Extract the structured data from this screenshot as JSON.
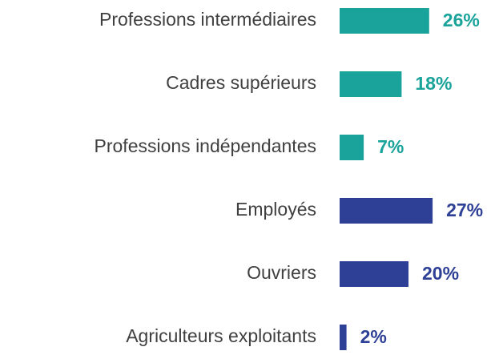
{
  "chart_data": {
    "type": "bar",
    "orientation": "horizontal",
    "categories": [
      "Professions intermédiaires",
      "Cadres supérieurs",
      "Professions indépendantes",
      "Employés",
      "Ouvriers",
      "Agriculteurs exploitants"
    ],
    "values": [
      26,
      18,
      7,
      27,
      20,
      2
    ],
    "value_labels": [
      "26%",
      "18%",
      "7%",
      "27%",
      "20%",
      "2%"
    ],
    "colors": [
      "#1aa39a",
      "#1aa39a",
      "#1aa39a",
      "#2e3f96",
      "#2e3f96",
      "#2e3f96"
    ]
  }
}
